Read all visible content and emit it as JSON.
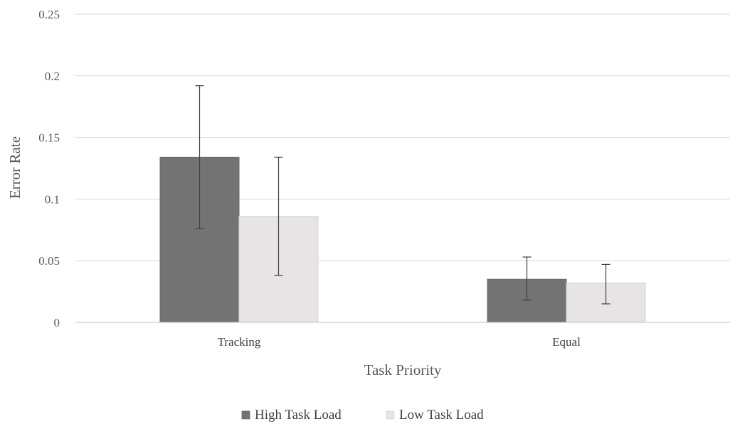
{
  "chart_data": {
    "type": "bar",
    "title": "",
    "xlabel": "Task Priority",
    "ylabel": "Error Rate",
    "categories": [
      "Tracking",
      "Equal"
    ],
    "ylim": [
      0,
      0.25
    ],
    "yticks": [
      0,
      0.05,
      0.1,
      0.15,
      0.2,
      0.25
    ],
    "ytick_labels": [
      "0",
      "0.05",
      "0.1",
      "0.15",
      "0.2",
      "0.25"
    ],
    "grid": true,
    "legend_position": "bottom",
    "series": [
      {
        "name": "High Task Load",
        "color": "#737373",
        "values": [
          0.134,
          0.035
        ],
        "error_low": [
          0.076,
          0.018
        ],
        "error_high": [
          0.192,
          0.053
        ]
      },
      {
        "name": "Low Task Load",
        "color": "#e6e4e5",
        "values": [
          0.086,
          0.032
        ],
        "error_low": [
          0.038,
          0.015
        ],
        "error_high": [
          0.134,
          0.047
        ]
      }
    ]
  }
}
